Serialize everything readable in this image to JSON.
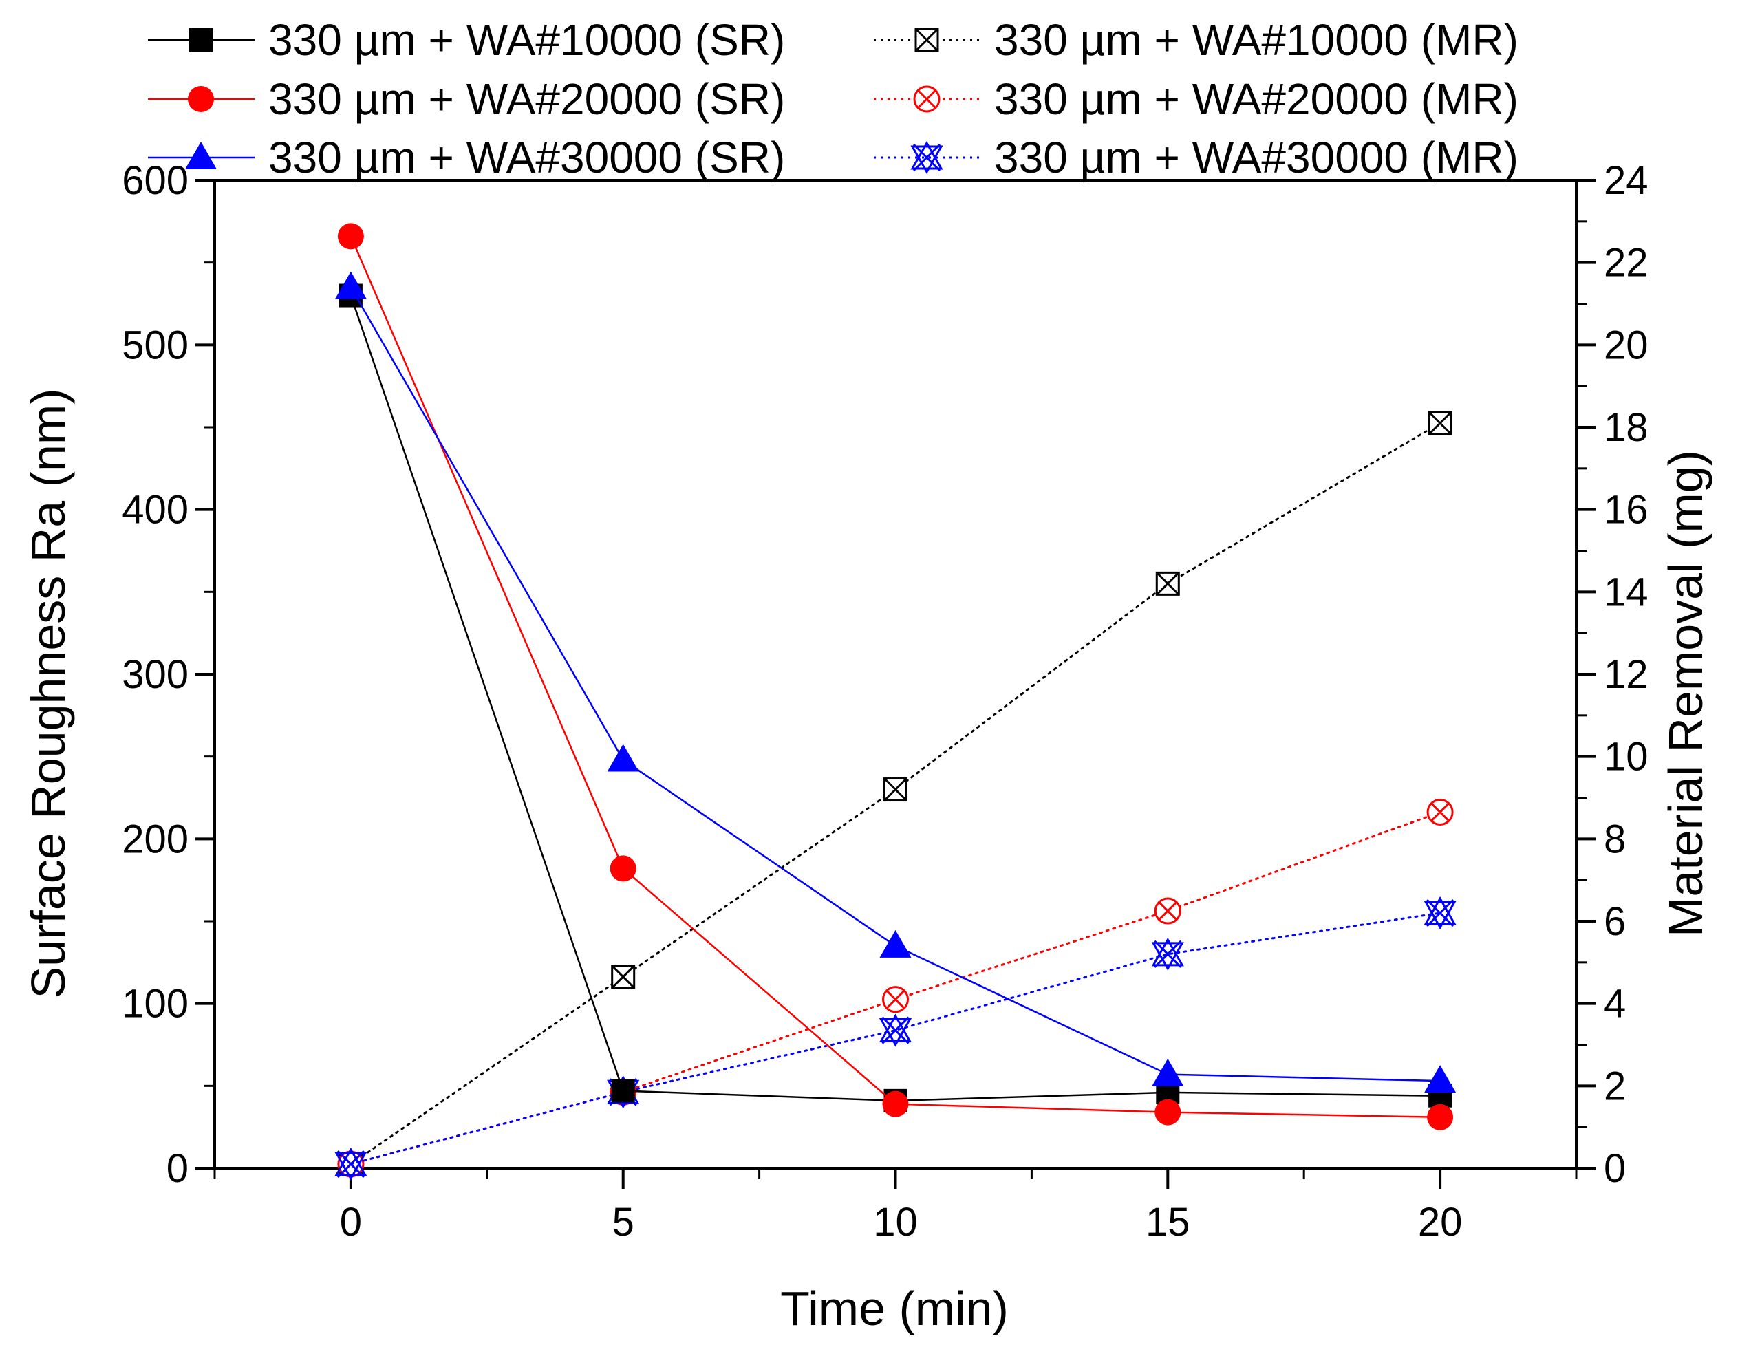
{
  "chart_data": {
    "type": "line",
    "title": "",
    "xlabel": "Time (min)",
    "ylabel": "Surface Roughness Ra (nm)",
    "y2label": "Material Removal (mg)",
    "xlim": [
      -2.5,
      22.5
    ],
    "ylim": [
      0,
      600
    ],
    "y2lim": [
      0,
      24
    ],
    "x_ticks": [
      0,
      5,
      10,
      15,
      20
    ],
    "y_ticks": [
      0,
      100,
      200,
      300,
      400,
      500,
      600
    ],
    "y2_ticks": [
      0,
      2,
      4,
      6,
      8,
      10,
      12,
      14,
      16,
      18,
      20,
      22,
      24
    ],
    "x": [
      0,
      5,
      10,
      15,
      20
    ],
    "legend_position": "top",
    "series": [
      {
        "name": "330 µm + WA#10000 (SR)",
        "axis": "left",
        "color": "#000000",
        "marker": "square-filled",
        "line": "solid",
        "values": [
          530,
          47,
          41,
          46,
          44
        ]
      },
      {
        "name": "330 µm + WA#20000 (SR)",
        "axis": "left",
        "color": "#ff0000",
        "marker": "circle-filled",
        "line": "solid",
        "values": [
          566,
          182,
          39,
          34,
          31
        ]
      },
      {
        "name": "330 µm + WA#30000 (SR)",
        "axis": "left",
        "color": "#0000ff",
        "marker": "triangle-filled",
        "line": "solid",
        "values": [
          535,
          248,
          135,
          57,
          53
        ]
      },
      {
        "name": "330 µm + WA#10000 (MR)",
        "axis": "right",
        "color": "#000000",
        "marker": "square-cross",
        "line": "dotted",
        "values": [
          0.1,
          4.65,
          9.2,
          14.2,
          18.1
        ]
      },
      {
        "name": "330 µm + WA#20000 (MR)",
        "axis": "right",
        "color": "#ff0000",
        "marker": "circle-cross",
        "line": "dotted",
        "values": [
          0.1,
          1.85,
          4.1,
          6.25,
          8.65
        ]
      },
      {
        "name": "330 µm + WA#30000 (MR)",
        "axis": "right",
        "color": "#0000ff",
        "marker": "star-x",
        "line": "dotted",
        "values": [
          0.1,
          1.85,
          3.35,
          5.2,
          6.2
        ]
      }
    ]
  }
}
